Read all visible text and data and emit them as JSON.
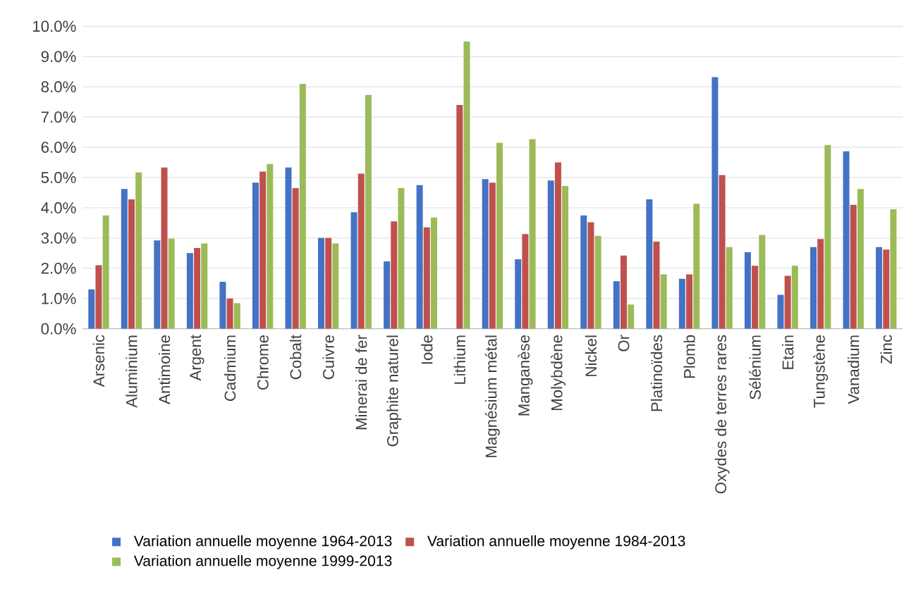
{
  "chart_data": {
    "type": "bar",
    "categories": [
      "Arsenic",
      "Aluminium",
      "Antimoine",
      "Argent",
      "Cadmium",
      "Chrome",
      "Cobalt",
      "Cuivre",
      "Minerai de fer",
      "Graphite naturel",
      "Iode",
      "Lithium",
      "Magnésium métal",
      "Manganèse",
      "Molybdène",
      "Nickel",
      "Or",
      "Platinoïdes",
      "Plomb",
      "Oxydes de terres rares",
      "Sélénium",
      "Etain",
      "Tungstène",
      "Vanadium",
      "Zinc"
    ],
    "series": [
      {
        "name": "Variation annuelle moyenne 1964-2013",
        "color": "#4472c4",
        "values": [
          1.3,
          4.62,
          2.92,
          2.5,
          1.55,
          4.83,
          5.33,
          3.0,
          3.85,
          2.23,
          4.75,
          null,
          4.95,
          2.3,
          4.9,
          3.75,
          1.57,
          4.28,
          1.65,
          8.32,
          2.53,
          1.12,
          2.7,
          5.87,
          2.7
        ]
      },
      {
        "name": "Variation annuelle moyenne 1984-2013",
        "color": "#c0504d",
        "values": [
          2.1,
          4.28,
          5.33,
          2.67,
          1.0,
          5.2,
          4.65,
          3.0,
          5.13,
          3.55,
          3.35,
          7.4,
          4.83,
          3.13,
          5.5,
          3.52,
          2.42,
          2.88,
          1.8,
          5.08,
          2.08,
          1.75,
          2.97,
          4.1,
          2.62
        ]
      },
      {
        "name": "Variation annuelle moyenne 1999-2013",
        "color": "#9bbb59",
        "values": [
          3.75,
          5.17,
          2.98,
          2.82,
          0.85,
          5.45,
          8.1,
          2.82,
          7.73,
          4.65,
          3.68,
          9.5,
          6.15,
          6.27,
          4.72,
          3.07,
          0.8,
          1.8,
          4.13,
          2.7,
          3.1,
          2.08,
          6.08,
          4.62,
          3.95
        ]
      }
    ],
    "ylim": [
      0,
      10
    ],
    "yticks": [
      {
        "value": 0,
        "label": "0.0%"
      },
      {
        "value": 1,
        "label": "1.0%"
      },
      {
        "value": 2,
        "label": "2.0%"
      },
      {
        "value": 3,
        "label": "3.0%"
      },
      {
        "value": 4,
        "label": "4.0%"
      },
      {
        "value": 5,
        "label": "5.0%"
      },
      {
        "value": 6,
        "label": "6.0%"
      },
      {
        "value": 7,
        "label": "7.0%"
      },
      {
        "value": 8,
        "label": "8.0%"
      },
      {
        "value": 9,
        "label": "9.0%"
      },
      {
        "value": 10,
        "label": "10.0%"
      }
    ],
    "grid": "y",
    "legend": "bottom"
  }
}
